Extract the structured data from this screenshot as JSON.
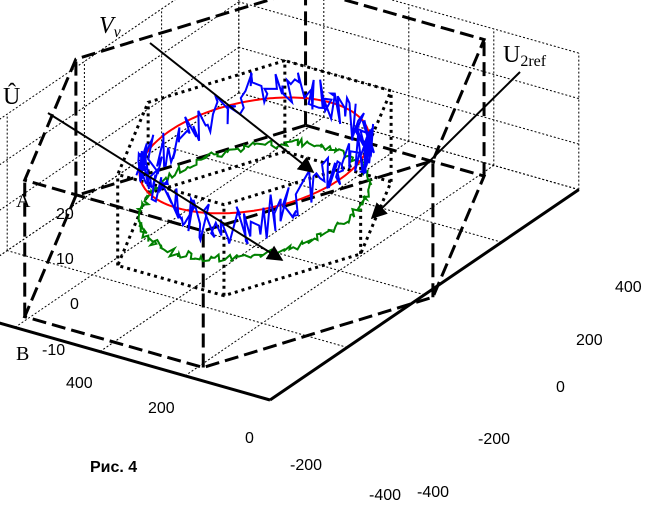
{
  "chart_data": {
    "type": "line",
    "caption": "Рис. 4",
    "zlim": [
      -10,
      20
    ],
    "z_ticks": [
      "20",
      "10",
      "0",
      "-10"
    ],
    "x_ticks": [
      "400",
      "200",
      "0",
      "-200",
      "-400"
    ],
    "y_ticks": [
      "-400",
      "-200",
      "0",
      "200",
      "400"
    ],
    "grid": true,
    "axis_marks": [
      "A",
      "B"
    ],
    "annotations": {
      "vv": "V",
      "vv_sub": "v",
      "uhat": "Û",
      "u2ref": "U",
      "u2ref_sub": "2ref"
    },
    "series": [
      {
        "color": "#ff0000",
        "style": "solid",
        "x_radius": 200,
        "y_radius": 200,
        "z": 10
      },
      {
        "color": "#0000ff",
        "style": "noisy",
        "x_radius": 200,
        "y_radius": 200,
        "z_range": [
          5,
          17
        ]
      },
      {
        "color": "#008000",
        "style": "noisy",
        "x_radius": 200,
        "y_radius": 200,
        "z": 0
      },
      {
        "color": "#000000",
        "style": "dashed-hexagon",
        "shape_levels": [
          "outer",
          "inner"
        ]
      }
    ]
  },
  "colors": {
    "red": "#ff0000",
    "blue": "#0000ff",
    "green": "#008000"
  }
}
